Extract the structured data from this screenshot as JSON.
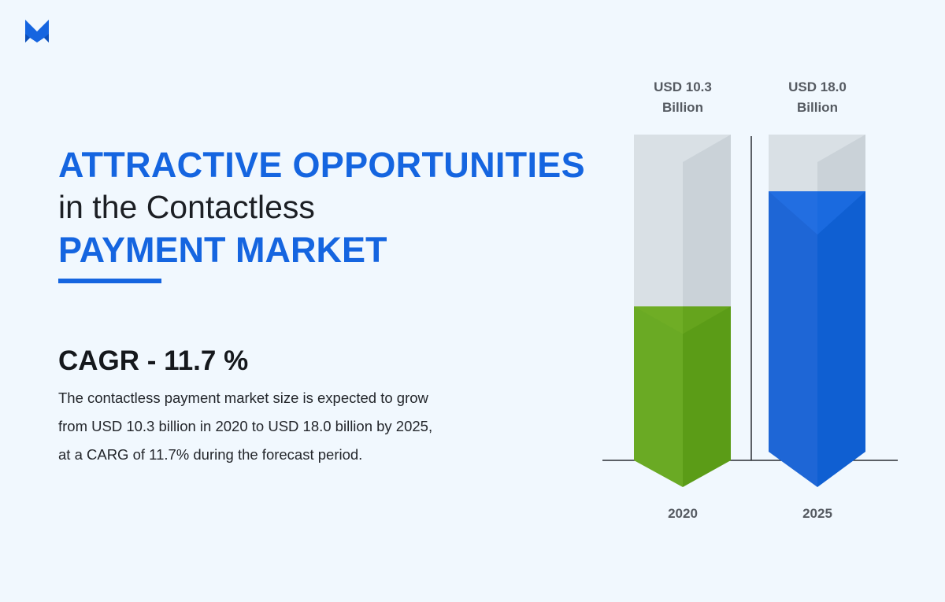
{
  "brand": {
    "logo_letter": "M",
    "color": "#1565e0"
  },
  "heading": {
    "line1": "ATTRACTIVE OPPORTUNITIES",
    "line2": "in the Contactless",
    "line3": "PAYMENT MARKET"
  },
  "cagr_title": "CAGR - 11.7 %",
  "description": [
    "The contactless payment market size is expected to grow",
    "from USD 10.3 billion in 2020 to USD 18.0 billion by 2025,",
    "at a CARG of 11.7% during the forecast period."
  ],
  "chart_data": {
    "type": "bar",
    "categories": [
      "2020",
      "2025"
    ],
    "values": [
      10.3,
      18.0
    ],
    "unit": "USD Billion",
    "value_labels": [
      {
        "line1": "USD 10.3",
        "line2": "Billion"
      },
      {
        "line1": "USD 18.0",
        "line2": "Billion"
      }
    ],
    "ylim": [
      0,
      21.8
    ],
    "colors": [
      "#6aaa24",
      "#1e66d6"
    ],
    "title": "",
    "xlabel": "",
    "ylabel": "",
    "grid": false
  }
}
